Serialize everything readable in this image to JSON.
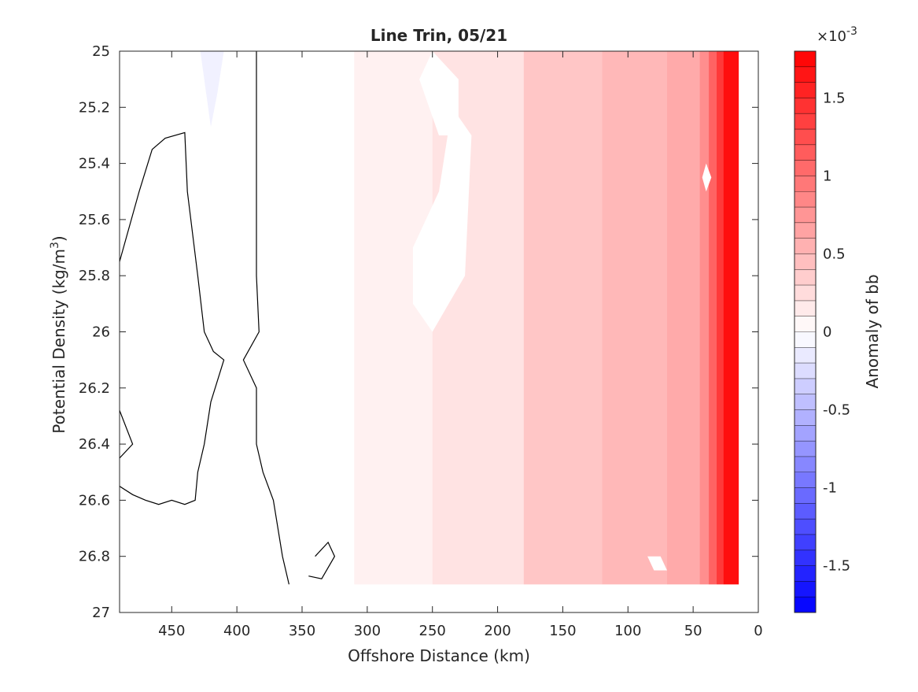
{
  "chart_data": {
    "type": "contour",
    "title": "Line Trin, 05/21",
    "xlabel": "Offshore Distance (km)",
    "ylabel_main": "Potential Density (kg/m",
    "ylabel_sup": "3",
    "ylabel_end": ")",
    "xlim": [
      0,
      490
    ],
    "x_reversed": true,
    "ylim": [
      25,
      27
    ],
    "y_reversed": true,
    "x_ticks": [
      450,
      400,
      350,
      300,
      250,
      200,
      150,
      100,
      50,
      0
    ],
    "y_ticks": [
      25,
      25.2,
      25.4,
      25.6,
      25.8,
      26,
      26.2,
      26.4,
      26.6,
      26.8,
      27
    ],
    "y_tick_labels": [
      "25",
      "25.2",
      "25.4",
      "25.6",
      "25.8",
      "26",
      "26.2",
      "26.4",
      "26.6",
      "26.8",
      "27"
    ],
    "data_extent": {
      "x_min": 30,
      "y_max": 26.9
    },
    "bands": [
      {
        "x_start": 490,
        "x_end": 310,
        "value": 0.0
      },
      {
        "x_start": 310,
        "x_end": 250,
        "value": 0.0001
      },
      {
        "x_start": 250,
        "x_end": 180,
        "value": 0.0002
      },
      {
        "x_start": 180,
        "x_end": 120,
        "value": 0.0004
      },
      {
        "x_start": 120,
        "x_end": 70,
        "value": 0.0005
      },
      {
        "x_start": 70,
        "x_end": 45,
        "value": 0.0006
      },
      {
        "x_start": 45,
        "x_end": 38,
        "value": 0.0008
      },
      {
        "x_start": 38,
        "x_end": 32,
        "value": 0.0011
      },
      {
        "x_start": 32,
        "x_end": 27,
        "value": 0.0014
      },
      {
        "x_start": 27,
        "x_end": 15,
        "value": 0.0017
      }
    ],
    "white_patches": [
      {
        "points": [
          [
            265,
            25.7
          ],
          [
            245,
            25.5
          ],
          [
            235,
            25.2
          ],
          [
            220,
            25.3
          ],
          [
            225,
            25.8
          ],
          [
            250,
            26.0
          ],
          [
            265,
            25.9
          ]
        ]
      },
      {
        "points": [
          [
            250,
            25.0
          ],
          [
            230,
            25.1
          ],
          [
            230,
            25.3
          ],
          [
            245,
            25.3
          ],
          [
            260,
            25.1
          ]
        ]
      },
      {
        "points": [
          [
            75,
            26.8
          ],
          [
            70,
            26.85
          ],
          [
            80,
            26.85
          ],
          [
            85,
            26.8
          ]
        ]
      },
      {
        "points": [
          [
            40,
            25.4
          ],
          [
            36,
            25.45
          ],
          [
            40,
            25.5
          ],
          [
            43,
            25.45
          ]
        ]
      }
    ],
    "negative_patch": {
      "value": -0.0001,
      "points": [
        [
          428,
          25.0
        ],
        [
          410,
          25.0
        ],
        [
          415,
          25.15
        ],
        [
          420,
          25.27
        ]
      ]
    },
    "contour_lines": [
      [
        [
          490,
          25.75
        ],
        [
          475,
          25.5
        ],
        [
          465,
          25.35
        ],
        [
          455,
          25.31
        ],
        [
          440,
          25.29
        ],
        [
          438,
          25.5
        ],
        [
          430,
          25.8
        ],
        [
          425,
          26.0
        ],
        [
          418,
          26.07
        ],
        [
          410,
          26.1
        ],
        [
          420,
          26.25
        ],
        [
          425,
          26.4
        ],
        [
          430,
          26.5
        ],
        [
          432,
          26.6
        ],
        [
          440,
          26.615
        ],
        [
          450,
          26.6
        ],
        [
          460,
          26.615
        ],
        [
          470,
          26.6
        ],
        [
          480,
          26.58
        ],
        [
          490,
          26.55
        ]
      ],
      [
        [
          385,
          25.0
        ],
        [
          385,
          25.5
        ],
        [
          385,
          25.8
        ],
        [
          383,
          26.0
        ],
        [
          395,
          26.1
        ],
        [
          385,
          26.2
        ],
        [
          385,
          26.4
        ],
        [
          380,
          26.5
        ],
        [
          372,
          26.6
        ],
        [
          365,
          26.8
        ],
        [
          360,
          26.9
        ]
      ],
      [
        [
          490,
          26.28
        ],
        [
          480,
          26.4
        ],
        [
          490,
          26.45
        ]
      ],
      [
        [
          340,
          26.8
        ],
        [
          330,
          26.75
        ],
        [
          325,
          26.8
        ],
        [
          335,
          26.88
        ],
        [
          345,
          26.87
        ]
      ]
    ],
    "colorbar": {
      "label": "Anomaly of bb",
      "exponent_base": "×10",
      "exponent": "-3",
      "range": [
        -0.0018,
        0.0018
      ],
      "levels": 36,
      "ticks": [
        1.5,
        1,
        0.5,
        0,
        -0.5,
        -1,
        -1.5
      ],
      "tick_labels": [
        "1.5",
        "1",
        "0.5",
        "0",
        "-0.5",
        "-1",
        "-1.5"
      ],
      "colormap": "blue-white-red"
    }
  }
}
